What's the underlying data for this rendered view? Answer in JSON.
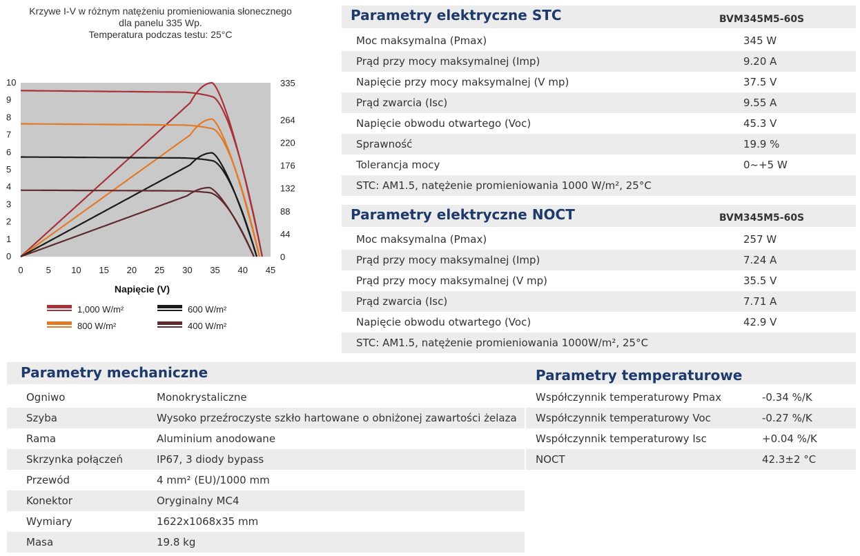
{
  "chart_data": {
    "type": "line",
    "title_lines": [
      "Krzywe I-V w różnym natężeniu promieniowania słonecznego",
      "dla panelu 335 Wp.",
      "Temperatura podczas testu: 25°C"
    ],
    "xlabel": "Napięcie (V)",
    "x_ticks": [
      "0",
      "5",
      "10",
      "15",
      "20",
      "25",
      "30",
      "35",
      "40",
      "45"
    ],
    "y_left_ticks": [
      "0",
      "1",
      "2",
      "3",
      "4",
      "5",
      "6",
      "7",
      "8",
      "9",
      "10"
    ],
    "y_right_ticks": [
      "0",
      "44",
      "88",
      "132",
      "176",
      "220",
      "264",
      "335"
    ],
    "xlim": [
      0,
      45
    ],
    "ylim_current": [
      0,
      10
    ],
    "ylim_power": [
      0,
      335
    ],
    "grid": false,
    "legend_position": "bottom",
    "series": [
      {
        "name": "1,000 W/m²",
        "color": "#a8323a",
        "isc": 9.55,
        "imp": 9.2,
        "vmp": 34.5,
        "voc": 43.5,
        "pmax": 335
      },
      {
        "name": "800 W/m²",
        "color": "#e07b2a",
        "isc": 7.64,
        "imp": 7.36,
        "vmp": 34.5,
        "voc": 43.0,
        "pmax": 265
      },
      {
        "name": "600 W/m²",
        "color": "#1a1a1a",
        "isc": 5.73,
        "imp": 5.52,
        "vmp": 34.5,
        "voc": 42.5,
        "pmax": 200
      },
      {
        "name": "400 W/m²",
        "color": "#5e2a2e",
        "isc": 3.82,
        "imp": 3.68,
        "vmp": 34.0,
        "voc": 42.0,
        "pmax": 133
      }
    ]
  },
  "stc": {
    "title": "Parametry elektryczne STC",
    "model": "BVM345M5-60S",
    "rows": [
      {
        "label": "Moc maksymalna (Pmax)",
        "value": "345 W"
      },
      {
        "label": "Prąd przy mocy maksymalnej (Imp)",
        "value": "9.20 A"
      },
      {
        "label": "Napięcie przy mocy maksymalnej (V mp)",
        "value": "37.5 V"
      },
      {
        "label": "Prąd zwarcia (Isc)",
        "value": "9.55 A"
      },
      {
        "label": "Napięcie obwodu otwartego (Voc)",
        "value": "45.3 V"
      },
      {
        "label": "Sprawność",
        "value": "19.9 %"
      },
      {
        "label": "Tolerancja mocy",
        "value": "0~+5 W"
      },
      {
        "label": "STC: AM1.5, natężenie promieniowania 1000 W/m², 25°C",
        "value": ""
      }
    ]
  },
  "noct": {
    "title": "Parametry elektryczne NOCT",
    "model": "BVM345M5-60S",
    "rows": [
      {
        "label": "Moc maksymalna (Pmax)",
        "value": "257 W"
      },
      {
        "label": "Prąd przy mocy maksymalnej (Imp)",
        "value": "7.24 A"
      },
      {
        "label": "Prąd przy mocy maksymalnej (V mp)",
        "value": "35.5 V"
      },
      {
        "label": "Prąd zwarcia (Isc)",
        "value": "7.71 A"
      },
      {
        "label": "Napięcie obwodu otwartego (Voc)",
        "value": "42.9 V"
      },
      {
        "label": "STC: AM1.5, natężenie promieniowania 1000W/m², 25°C",
        "value": ""
      }
    ]
  },
  "mech": {
    "title": "Parametry mechaniczne",
    "rows": [
      {
        "label": "Ogniwo",
        "value": "Monokrystaliczne"
      },
      {
        "label": "Szyba",
        "value": "Wysoko przeźroczyste szkło hartowane o obniżonej zawartości żelaza"
      },
      {
        "label": "Rama",
        "value": "Aluminium anodowane"
      },
      {
        "label": "Skrzynka połączeń",
        "value": "IP67, 3 diody bypass"
      },
      {
        "label": "Przewód",
        "value": "4 mm² (EU)/1000 mm"
      },
      {
        "label": "Konektor",
        "value": "Oryginalny MC4"
      },
      {
        "label": "Wymiary",
        "value": "1622x1068x35 mm"
      },
      {
        "label": "Masa",
        "value": "19.8 kg"
      }
    ]
  },
  "temp": {
    "title": "Parametry temperaturowe",
    "rows": [
      {
        "label": "Współczynnik temperaturowy Pmax",
        "value": "-0.34 %/K"
      },
      {
        "label": "Współczynnik temperaturowy Voc",
        "value": "-0.27 %/K"
      },
      {
        "label": "Współczynnik temperaturowy Isc",
        "value": "+0.04 %/K"
      },
      {
        "label": "NOCT",
        "value": "42.3±2 °C"
      }
    ]
  }
}
